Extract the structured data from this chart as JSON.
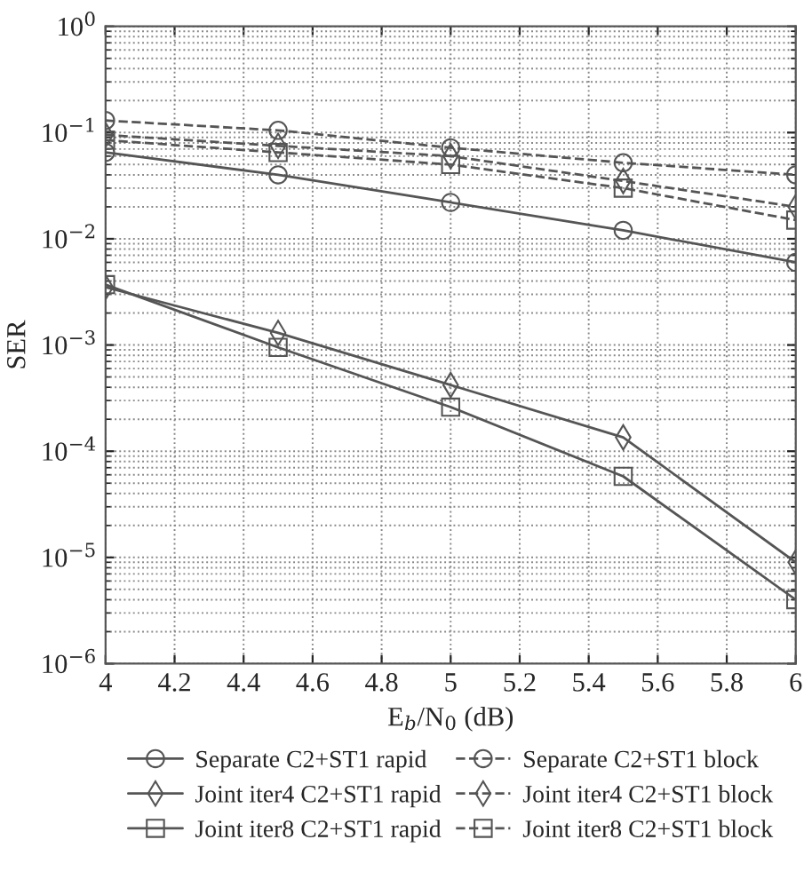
{
  "chart_data": {
    "type": "line",
    "xlabel": "E$_{b}$/N$_{0}$ (dB)",
    "ylabel": "SER",
    "x": [
      4,
      4.5,
      5,
      5.5,
      6
    ],
    "series": [
      {
        "name": "Separate C2+ST1 rapid",
        "color": "#555555",
        "marker": "circle",
        "line_style": "solid",
        "values": [
          0.065,
          0.04,
          0.022,
          0.012,
          0.006
        ]
      },
      {
        "name": "Joint iter4 C2+ST1 rapid",
        "color": "#555555",
        "marker": "diamond",
        "line_style": "solid",
        "values": [
          0.0035,
          0.0013,
          0.00042,
          0.000135,
          9e-06
        ]
      },
      {
        "name": "Joint iter8 C2+ST1 rapid",
        "color": "#555555",
        "marker": "square",
        "line_style": "solid",
        "values": [
          0.0037,
          0.00095,
          0.00026,
          5.8e-05,
          4e-06
        ]
      },
      {
        "name": "Separate C2+ST1 block",
        "color": "#555555",
        "marker": "circle",
        "line_style": "dashed",
        "values": [
          0.13,
          0.105,
          0.072,
          0.052,
          0.04
        ]
      },
      {
        "name": "Joint iter4 C2+ST1 block",
        "color": "#555555",
        "marker": "diamond",
        "line_style": "dashed",
        "values": [
          0.095,
          0.075,
          0.06,
          0.035,
          0.02
        ]
      },
      {
        "name": "Joint iter8 C2+ST1 block",
        "color": "#555555",
        "marker": "square",
        "line_style": "dashed",
        "values": [
          0.085,
          0.065,
          0.05,
          0.03,
          0.015
        ]
      }
    ],
    "log": "y",
    "xlim": [
      4,
      6
    ],
    "xticks": [
      4,
      4.2,
      4.4,
      4.6,
      4.8,
      5,
      5.2,
      5.4,
      5.6,
      5.8,
      6
    ],
    "ylim": [
      1e-06,
      1
    ],
    "yticks": [
      {
        "value": 1e-06,
        "label": "10$^{−6}$"
      },
      {
        "value": 1e-05,
        "label": "10$^{−5}$"
      },
      {
        "value": 0.0001,
        "label": "10$^{−4}$"
      },
      {
        "value": 0.001,
        "label": "10$^{−3}$"
      },
      {
        "value": 0.01,
        "label": "10$^{−2}$"
      },
      {
        "value": 0.1,
        "label": "10$^{−1}$"
      },
      {
        "value": 1,
        "label": "10$^{0}$"
      }
    ],
    "grid": true,
    "legend": "bottom"
  }
}
